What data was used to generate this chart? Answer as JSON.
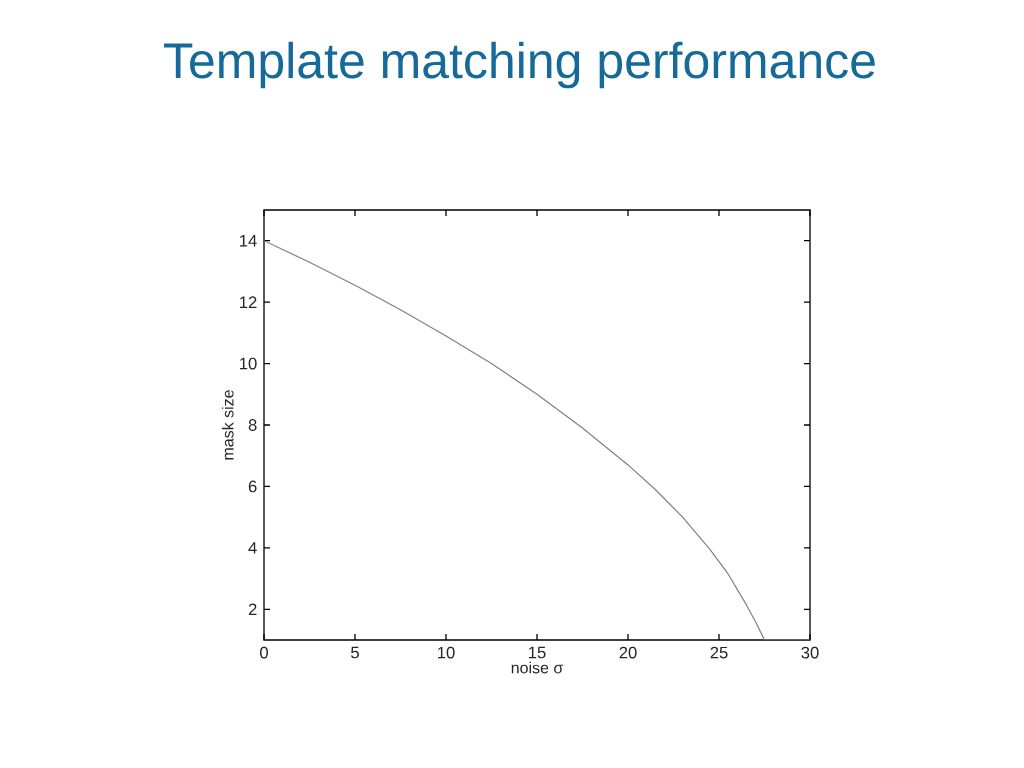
{
  "chart_data": {
    "type": "line",
    "title": "Template matching performance",
    "xlabel": "noise σ",
    "ylabel": "mask size",
    "x": [
      0,
      2.5,
      5,
      7.5,
      10,
      12.5,
      15,
      17.5,
      20,
      21.5,
      23,
      24.5,
      25.5,
      26.5,
      27,
      27.5,
      30
    ],
    "values": [
      14,
      13.3,
      12.55,
      11.75,
      10.9,
      10.0,
      9.0,
      7.9,
      6.7,
      5.9,
      5.0,
      3.95,
      3.15,
      2.15,
      1.6,
      1,
      1
    ],
    "color": "#808080",
    "line_style": "solid",
    "marker": "none",
    "xlim": [
      0,
      30
    ],
    "ylim": [
      1,
      15
    ],
    "xticks": [
      0,
      5,
      10,
      15,
      20,
      25,
      30
    ],
    "yticks": [
      2,
      4,
      6,
      8,
      10,
      12,
      14
    ]
  }
}
